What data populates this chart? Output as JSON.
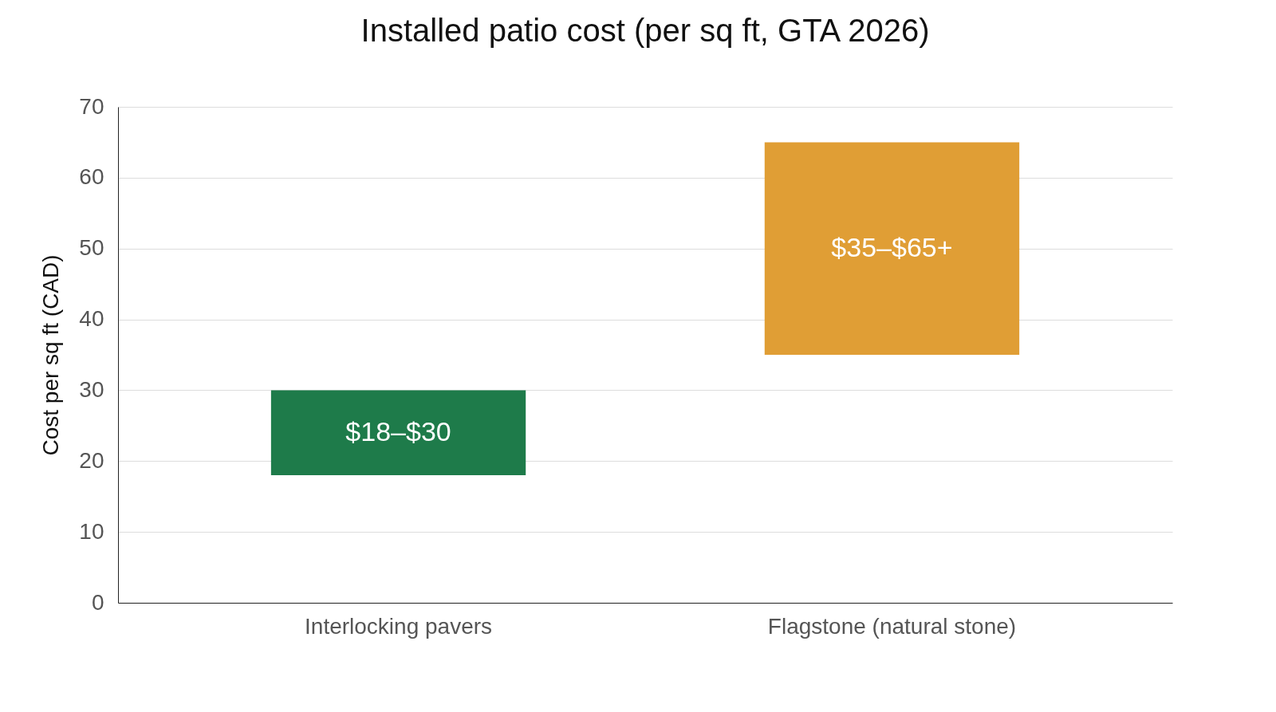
{
  "chart_data": {
    "type": "bar",
    "title": "Installed patio cost (per sq ft, GTA 2026)",
    "ylabel": "Cost per sq ft (CAD)",
    "categories": [
      "Interlocking pavers",
      "Flagstone (natural stone)"
    ],
    "base": [
      18,
      35
    ],
    "values": [
      12,
      30
    ],
    "colors": [
      "#1e7b4a",
      "#e09e35"
    ],
    "value_labels": [
      "$18–$30",
      "$35–$65+"
    ],
    "ylim": [
      0,
      70
    ],
    "yticks": [
      0,
      10,
      20,
      30,
      40,
      50,
      60,
      70
    ],
    "grid": "y"
  }
}
